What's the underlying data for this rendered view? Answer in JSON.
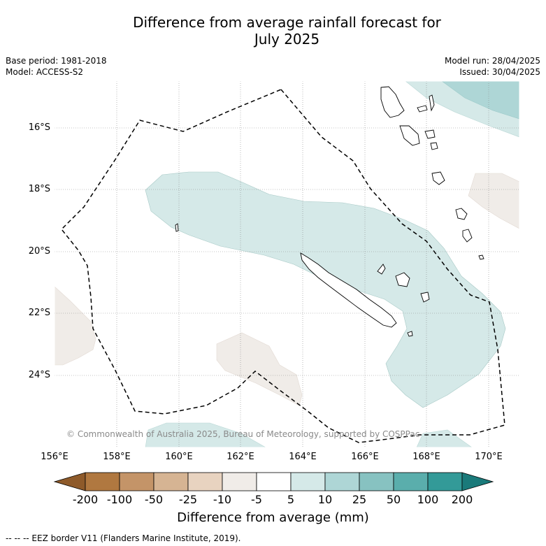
{
  "title_line1": "Difference from average rainfall forecast for",
  "title_line2": "July 2025",
  "base_period": "Base period: 1981-2018",
  "model": "Model: ACCESS-S2",
  "model_run": "Model run: 28/04/2025",
  "issued": "Issued: 30/04/2025",
  "lat_labels": [
    "16°S",
    "18°S",
    "20°S",
    "22°S",
    "24°S"
  ],
  "lon_labels": [
    "156°E",
    "158°E",
    "160°E",
    "162°E",
    "164°E",
    "166°E",
    "168°E",
    "170°E"
  ],
  "copyright": "© Commonwealth of Australia 2025, Bureau of Meteorology, supported by COSPPac",
  "colorbar": {
    "ticks": [
      "-200",
      "-100",
      "-50",
      "-25",
      "-10",
      "-5",
      "5",
      "10",
      "25",
      "50",
      "100",
      "200"
    ],
    "colors": [
      "#8e5a2a",
      "#b07840",
      "#c49468",
      "#d6b493",
      "#e8d3c0",
      "#f0ece8",
      "#ffffff",
      "#d5e9e8",
      "#aed6d6",
      "#87c2c1",
      "#5aaeac",
      "#339a98",
      "#1a7a7a"
    ],
    "label": "Difference from average (mm)"
  },
  "footnote": "--  --  -- EEZ border V11 (Flanders Marine Institute, 2019).",
  "colors": {
    "light_teal": "#d5e9e8",
    "mid_teal": "#aed6d6",
    "light_brown": "#f0ece8"
  }
}
